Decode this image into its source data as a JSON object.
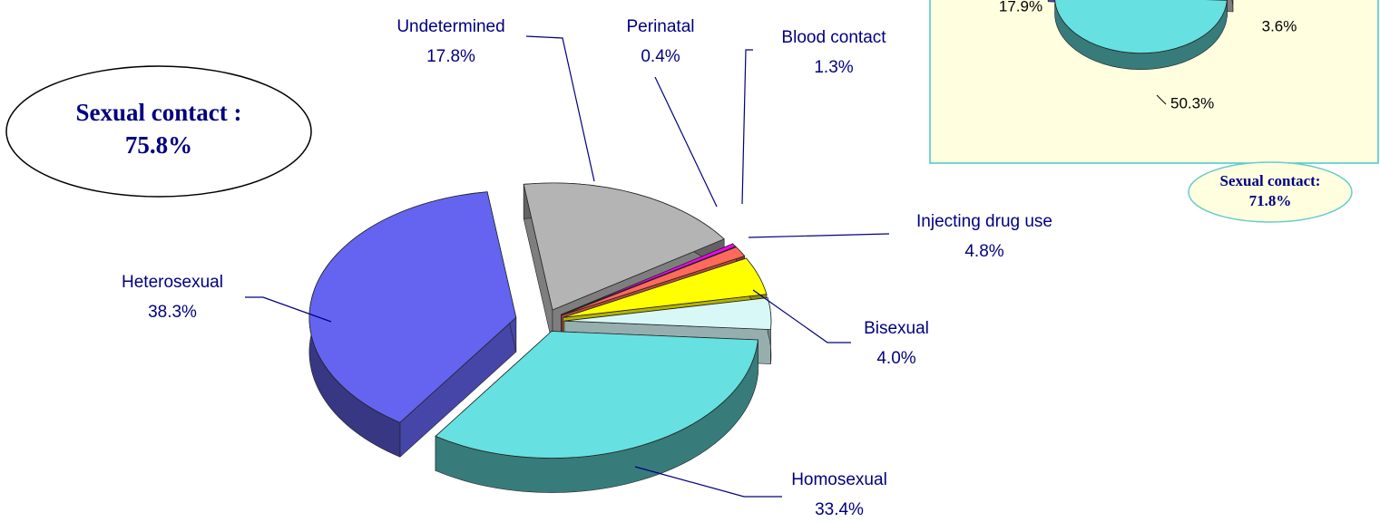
{
  "chart_data": [
    {
      "type": "pie3d",
      "categories": [
        "Undetermined",
        "Perinatal",
        "Blood contact",
        "Injecting drug use",
        "Bisexual",
        "Homosexual",
        "Heterosexual"
      ],
      "values": [
        17.8,
        0.4,
        1.3,
        4.8,
        4.0,
        33.4,
        38.3
      ],
      "value_labels": [
        "17.8%",
        "0.4%",
        "1.3%",
        "4.8%",
        "4.0%",
        "33.4%",
        "38.3%"
      ],
      "colors": [
        "#b4b4b4",
        "#ff00ff",
        "#ff6a5a",
        "#ffff00",
        "#d8f8f8",
        "#66e0e0",
        "#6464f0"
      ],
      "annotations": [
        [
          "Sexual contact :",
          "75.8%"
        ]
      ]
    },
    {
      "type": "pie3d",
      "categories": [
        null,
        null,
        null
      ],
      "values": [
        3.6,
        50.3,
        17.9
      ],
      "value_labels": [
        "3.6%",
        "50.3%",
        "17.9%"
      ],
      "colors": [
        "#b4b4b4",
        "#66e0e0",
        "#6464f0"
      ],
      "annotations": [
        [
          "Sexual contact:",
          "71.8%"
        ]
      ]
    }
  ]
}
